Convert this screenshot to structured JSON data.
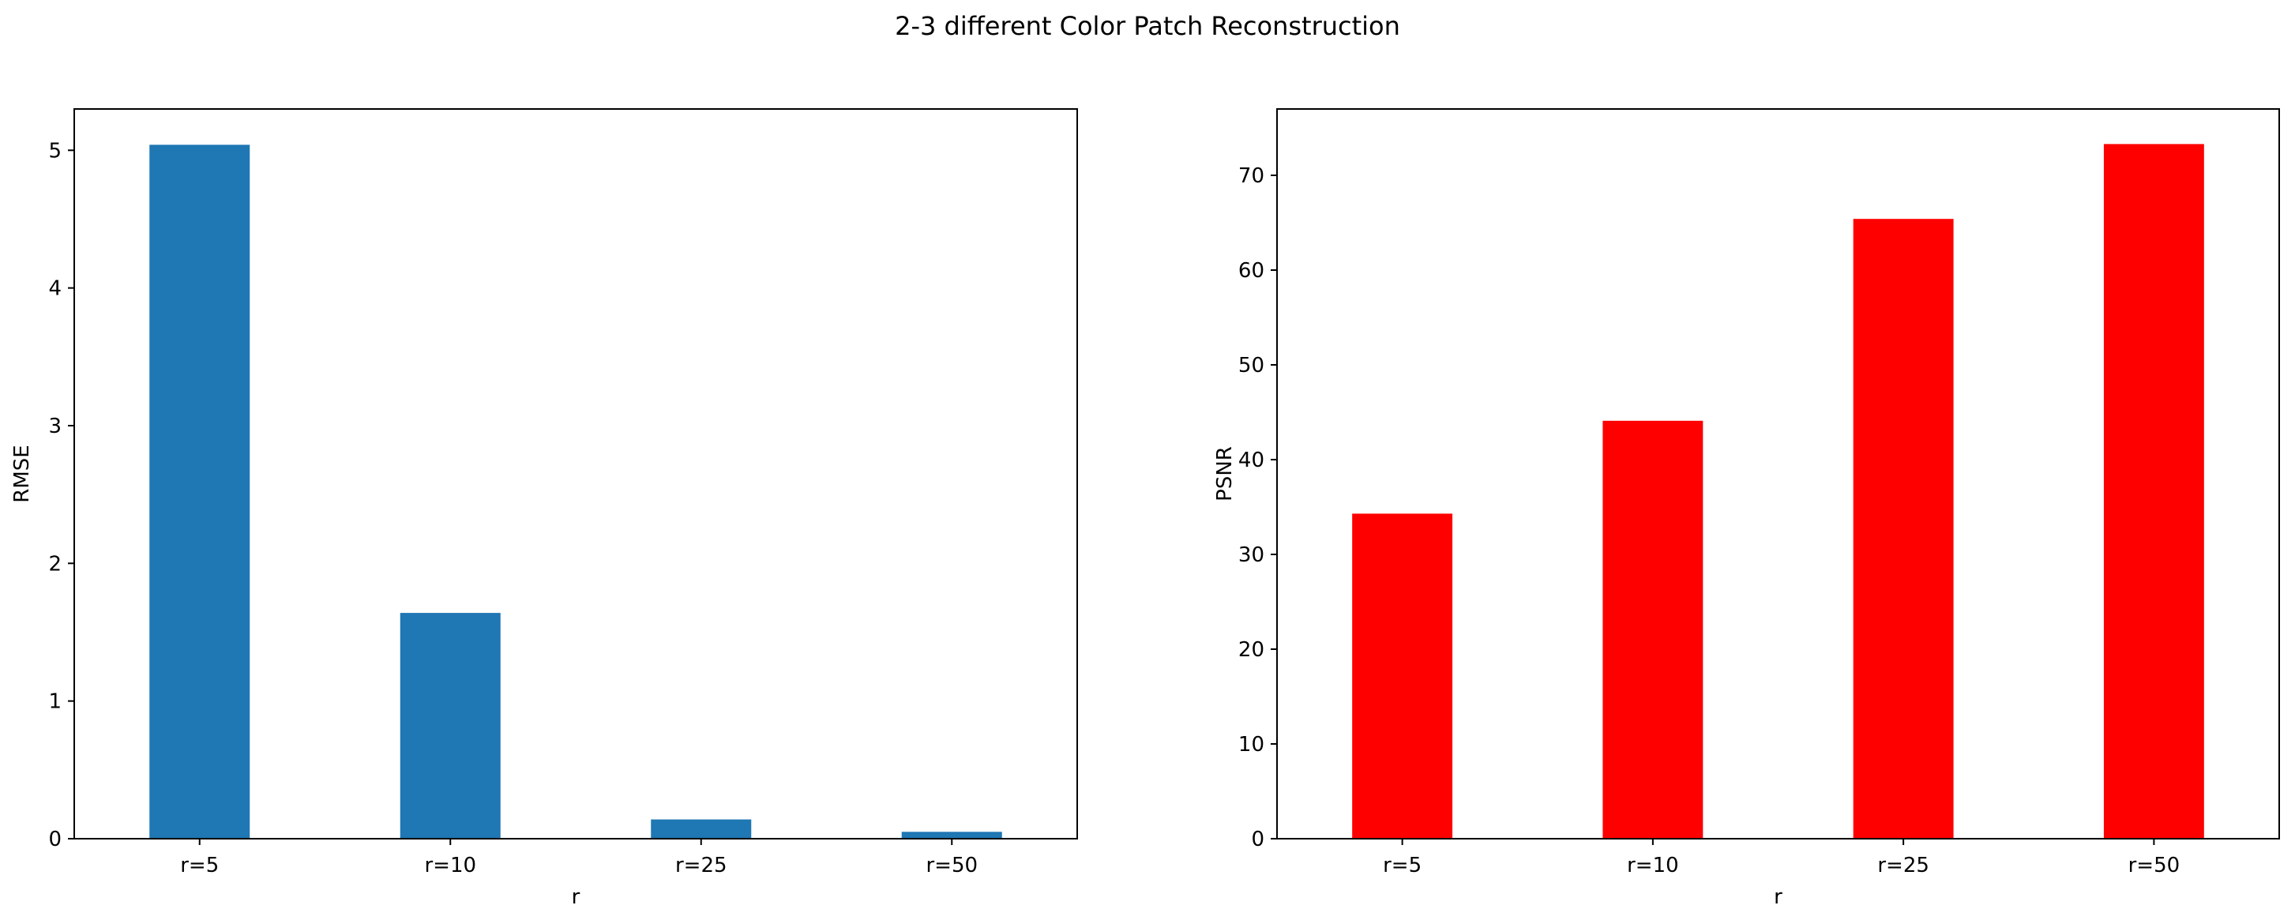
{
  "figure": {
    "title": "2-3 different Color Patch Reconstruction"
  },
  "chart_data": [
    {
      "type": "bar",
      "categories": [
        "r=5",
        "r=10",
        "r=25",
        "r=50"
      ],
      "values": [
        5.04,
        1.64,
        0.14,
        0.05
      ],
      "title": "",
      "xlabel": "r",
      "ylabel": "RMSE",
      "ylim": [
        0,
        5.3
      ],
      "yticks": [
        0,
        1,
        2,
        3,
        4,
        5
      ],
      "bar_color": "#1f77b4",
      "grid": false
    },
    {
      "type": "bar",
      "categories": [
        "r=5",
        "r=10",
        "r=25",
        "r=50"
      ],
      "values": [
        34.3,
        44.1,
        65.4,
        73.3
      ],
      "title": "",
      "xlabel": "r",
      "ylabel": "PSNR",
      "ylim": [
        0,
        77
      ],
      "yticks": [
        0,
        10,
        20,
        30,
        40,
        50,
        60,
        70
      ],
      "bar_color": "#ff0000",
      "grid": false
    }
  ]
}
